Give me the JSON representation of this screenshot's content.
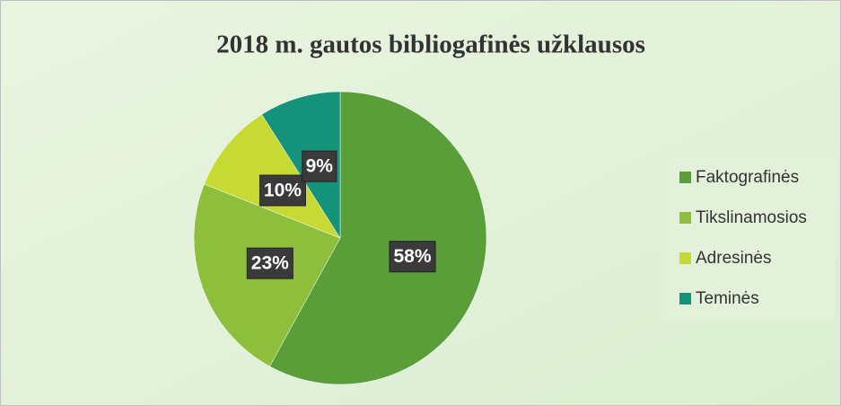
{
  "chart_data": {
    "type": "pie",
    "title": "2018 m. gautos bibliogafinės užklausos",
    "categories": [
      "Faktografinės",
      "Tikslinamosios",
      "Adresinės",
      "Teminės"
    ],
    "values": [
      58,
      23,
      10,
      9
    ],
    "value_labels": [
      "58%",
      "23%",
      "10%",
      "9%"
    ],
    "colors": [
      "#5a9e3a",
      "#8dbe3c",
      "#c7d933",
      "#15937a"
    ],
    "legend": "right"
  }
}
